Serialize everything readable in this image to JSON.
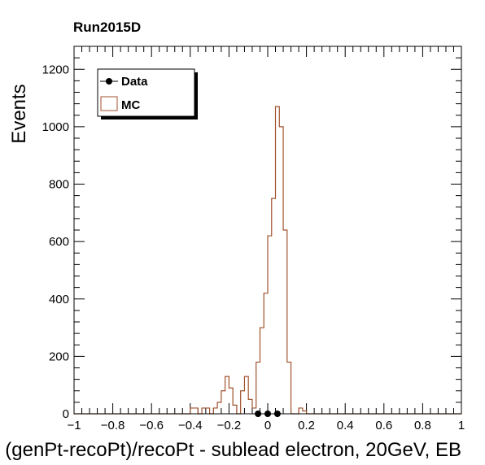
{
  "chart_data": {
    "type": "histogram",
    "title": "Run2015D",
    "xlabel": "(genPt-recoPt)/recoPt - sublead electron, 20GeV, EB",
    "ylabel": "Events",
    "xlim": [
      -1,
      1
    ],
    "ylim": [
      0,
      1280
    ],
    "xticks": [
      -1,
      -0.8,
      -0.6,
      -0.4,
      -0.2,
      0,
      0.2,
      0.4,
      0.6,
      0.8,
      1
    ],
    "xtick_labels": [
      "−1",
      "−0.8",
      "−0.6",
      "−0.4",
      "−0.2",
      "0",
      "0.2",
      "0.4",
      "0.6",
      "0.8",
      "1"
    ],
    "yticks": [
      0,
      200,
      400,
      600,
      800,
      1000,
      1200
    ],
    "ytick_labels": [
      "0",
      "200",
      "400",
      "600",
      "800",
      "1000",
      "1200"
    ],
    "legend_position": "top-left",
    "colors": {
      "mc": "#a0522d",
      "data": "#000000"
    },
    "series": [
      {
        "name": "MC",
        "kind": "step",
        "bin_width": 0.02,
        "bin_edges_start": -1,
        "values": [
          0,
          0,
          0,
          0,
          0,
          0,
          0,
          0,
          0,
          0,
          0,
          0,
          0,
          0,
          0,
          0,
          0,
          0,
          0,
          0,
          0,
          0,
          0,
          0,
          0,
          0,
          0,
          0,
          0,
          0,
          20,
          20,
          0,
          20,
          20,
          0,
          20,
          40,
          80,
          130,
          90,
          30,
          0,
          80,
          130,
          50,
          20,
          180,
          300,
          420,
          620,
          750,
          1070,
          1000,
          640,
          180,
          0,
          0,
          20,
          10,
          0,
          0,
          0,
          0,
          0,
          0,
          0,
          0,
          0,
          0,
          0,
          0,
          0,
          0,
          0,
          0,
          0,
          0,
          0,
          0,
          0,
          0,
          0,
          0,
          0,
          0,
          0,
          0,
          0,
          0,
          0,
          0,
          0,
          0,
          0,
          0,
          0,
          0,
          0,
          0
        ]
      },
      {
        "name": "Data",
        "kind": "points",
        "x": [
          -0.05,
          0,
          0.05
        ],
        "y": [
          0,
          0,
          0
        ]
      }
    ]
  }
}
